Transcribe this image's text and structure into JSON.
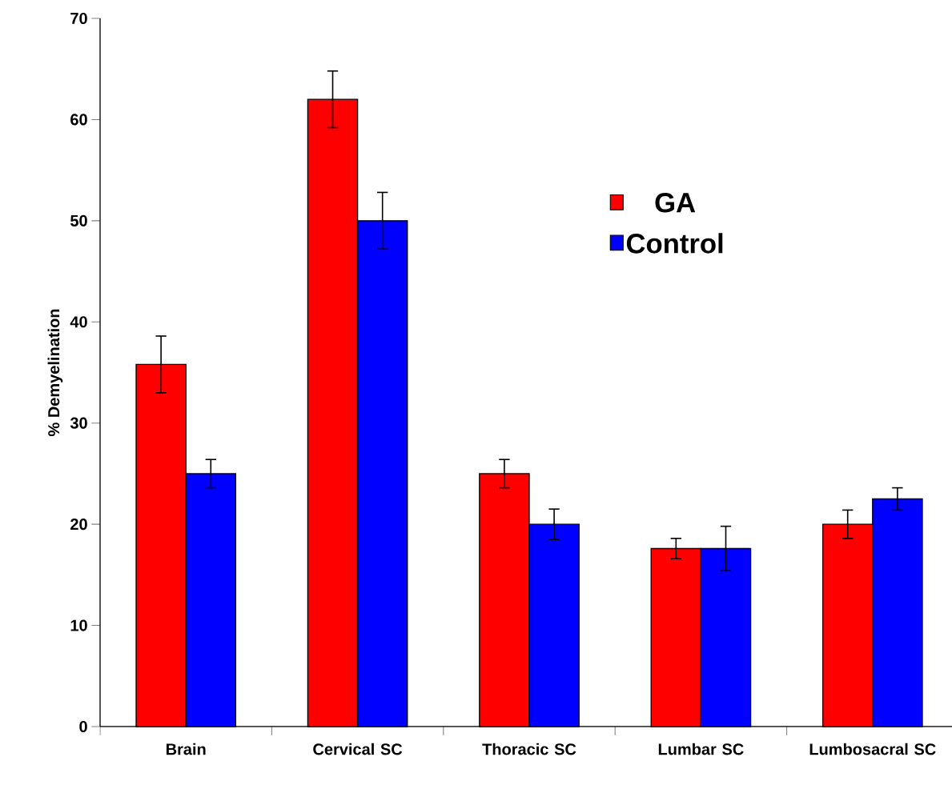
{
  "chart_data": {
    "type": "bar",
    "ylabel": "% Demyelination",
    "categories": [
      "Brain",
      "Cervical SC",
      "Thoracic SC",
      "Lumbar SC",
      "Lumbosacral SC"
    ],
    "series": [
      {
        "name": "GA",
        "color": "#ff0000",
        "values": [
          35.8,
          62.0,
          25.0,
          17.6,
          20.0
        ],
        "errors": [
          2.8,
          2.8,
          1.4,
          1.0,
          1.4
        ]
      },
      {
        "name": "Control",
        "color": "#0000ff",
        "values": [
          25.0,
          50.0,
          20.0,
          17.6,
          22.5
        ],
        "errors": [
          1.4,
          2.8,
          1.5,
          2.2,
          1.1
        ]
      }
    ],
    "ylim": [
      0,
      70
    ],
    "yticks": [
      0,
      10,
      20,
      30,
      40,
      50,
      60,
      70
    ],
    "grid": false,
    "legend": "top right"
  }
}
